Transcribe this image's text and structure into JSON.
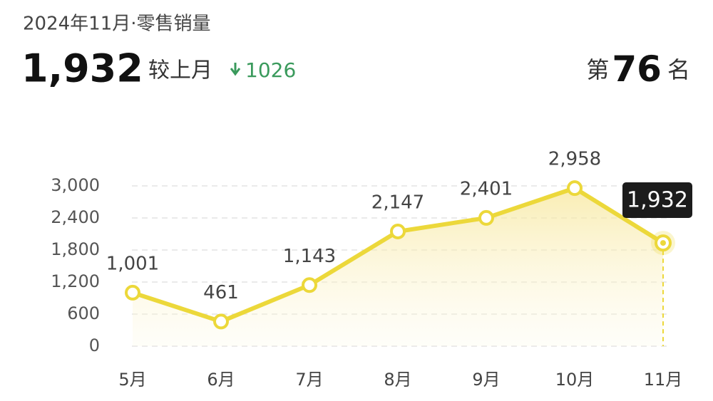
{
  "summary": {
    "title": "2024年11月·零售销量",
    "total": "1,932",
    "compare_label": "较上月",
    "change": 1026,
    "rank_prefix": "第",
    "rank": 76,
    "rank_suffix": "名"
  },
  "chart_data": {
    "type": "line",
    "categories": [
      "5月",
      "6月",
      "7月",
      "8月",
      "9月",
      "10月",
      "11月"
    ],
    "series": [
      {
        "color": "#ecd83a",
        "values": [
          1001,
          461,
          1143,
          2147,
          2401,
          2958,
          1932
        ],
        "value_labels": [
          "1,001",
          "461",
          "1,143",
          "2,147",
          "2,401",
          "2,958",
          "1,932"
        ]
      }
    ],
    "ylim": [
      0,
      3000
    ],
    "yticks": [
      0,
      600,
      {
        "value": 1200,
        "label": "1,200"
      },
      {
        "value": 1800,
        "label": "1,800"
      },
      {
        "value": 2400,
        "label": "2,400"
      },
      {
        "value": 3000,
        "label": "3,000"
      }
    ],
    "grid": true
  }
}
